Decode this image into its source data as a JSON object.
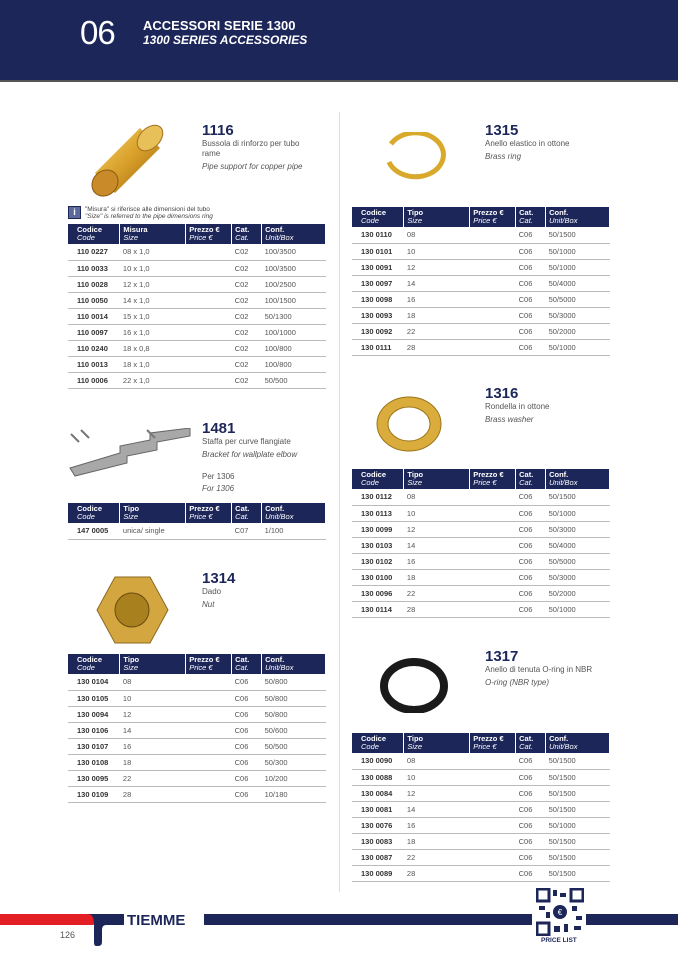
{
  "header": {
    "chapter": "06",
    "title_it": "ACCESSORI SERIE 1300",
    "title_en": "1300 SERIES ACCESSORIES"
  },
  "colors": {
    "brand_navy": "#1c2659",
    "brand_red": "#e31e24"
  },
  "note": {
    "it": "\"Misura\" si riferisce alle dimensioni del tubo",
    "en": "\"Size\" is referred to the pipe dimensions ring",
    "icon": "info-icon"
  },
  "headers_size": [
    [
      "Codice",
      "Code"
    ],
    [
      "Misura",
      "Size"
    ],
    [
      "Prezzo €",
      "Price €"
    ],
    [
      "Cat.",
      "Cat."
    ],
    [
      "Conf.",
      "Unit/Box"
    ]
  ],
  "headers_type": [
    [
      "Codice",
      "Code"
    ],
    [
      "Tipo",
      "Size"
    ],
    [
      "Prezzo €",
      "Price €"
    ],
    [
      "Cat.",
      "Cat."
    ],
    [
      "Conf.",
      "Unit/Box"
    ]
  ],
  "products": [
    {
      "id": "1116",
      "name_it": "Bussola di rinforzo per tubo rame",
      "name_en": "Pipe support for copper pipe",
      "headers": "headers_size",
      "rows": [
        [
          "110 0227",
          "08 x 1,0",
          "",
          "C02",
          "100/3500"
        ],
        [
          "110 0033",
          "10 x 1,0",
          "",
          "C02",
          "100/3500"
        ],
        [
          "110 0028",
          "12 x 1,0",
          "",
          "C02",
          "100/2500"
        ],
        [
          "110 0050",
          "14 x 1,0",
          "",
          "C02",
          "100/1500"
        ],
        [
          "110 0014",
          "15 x 1,0",
          "",
          "C02",
          "50/1300"
        ],
        [
          "110 0097",
          "16 x 1,0",
          "",
          "C02",
          "100/1000"
        ],
        [
          "110 0240",
          "18 x 0,8",
          "",
          "C02",
          "100/800"
        ],
        [
          "110 0013",
          "18 x 1,0",
          "",
          "C02",
          "100/800"
        ],
        [
          "110 0006",
          "22 x 1,0",
          "",
          "C02",
          "50/500"
        ]
      ]
    },
    {
      "id": "1481",
      "name_it": "Staffa per curve flangiate",
      "name_en": "Bracket for wallplate elbow",
      "extra_it": "Per 1306",
      "extra_en": "For 1306",
      "headers": "headers_type",
      "rows": [
        [
          "147 0005",
          "unica/ single",
          "",
          "C07",
          "1/100"
        ]
      ]
    },
    {
      "id": "1314",
      "name_it": "Dado",
      "name_en": "Nut",
      "headers": "headers_type",
      "rows": [
        [
          "130 0104",
          "08",
          "",
          "C06",
          "50/800"
        ],
        [
          "130 0105",
          "10",
          "",
          "C06",
          "50/800"
        ],
        [
          "130 0094",
          "12",
          "",
          "C06",
          "50/800"
        ],
        [
          "130 0106",
          "14",
          "",
          "C06",
          "50/600"
        ],
        [
          "130 0107",
          "16",
          "",
          "C06",
          "50/500"
        ],
        [
          "130 0108",
          "18",
          "",
          "C06",
          "50/300"
        ],
        [
          "130 0095",
          "22",
          "",
          "C06",
          "10/200"
        ],
        [
          "130 0109",
          "28",
          "",
          "C06",
          "10/180"
        ]
      ]
    },
    {
      "id": "1315",
      "name_it": "Anello elastico in ottone",
      "name_en": "Brass ring",
      "headers": "headers_type",
      "rows": [
        [
          "130 0110",
          "08",
          "",
          "C06",
          "50/1500"
        ],
        [
          "130 0101",
          "10",
          "",
          "C06",
          "50/1000"
        ],
        [
          "130 0091",
          "12",
          "",
          "C06",
          "50/1000"
        ],
        [
          "130 0097",
          "14",
          "",
          "C06",
          "50/4000"
        ],
        [
          "130 0098",
          "16",
          "",
          "C06",
          "50/5000"
        ],
        [
          "130 0093",
          "18",
          "",
          "C06",
          "50/3000"
        ],
        [
          "130 0092",
          "22",
          "",
          "C06",
          "50/2000"
        ],
        [
          "130 0111",
          "28",
          "",
          "C06",
          "50/1000"
        ]
      ]
    },
    {
      "id": "1316",
      "name_it": "Rondella in ottone",
      "name_en": "Brass washer",
      "headers": "headers_type",
      "rows": [
        [
          "130 0112",
          "08",
          "",
          "C06",
          "50/1500"
        ],
        [
          "130 0113",
          "10",
          "",
          "C06",
          "50/1000"
        ],
        [
          "130 0099",
          "12",
          "",
          "C06",
          "50/3000"
        ],
        [
          "130 0103",
          "14",
          "",
          "C06",
          "50/4000"
        ],
        [
          "130 0102",
          "16",
          "",
          "C06",
          "50/5000"
        ],
        [
          "130 0100",
          "18",
          "",
          "C06",
          "50/3000"
        ],
        [
          "130 0096",
          "22",
          "",
          "C06",
          "50/2000"
        ],
        [
          "130 0114",
          "28",
          "",
          "C06",
          "50/1000"
        ]
      ]
    },
    {
      "id": "1317",
      "name_it": "Anello di tenuta O-ring in NBR",
      "name_en": "O-ring (NBR type)",
      "headers": "headers_type",
      "rows": [
        [
          "130 0090",
          "08",
          "",
          "C06",
          "50/1500"
        ],
        [
          "130 0088",
          "10",
          "",
          "C06",
          "50/1500"
        ],
        [
          "130 0084",
          "12",
          "",
          "C06",
          "50/1500"
        ],
        [
          "130 0081",
          "14",
          "",
          "C06",
          "50/1500"
        ],
        [
          "130 0076",
          "16",
          "",
          "C06",
          "50/1000"
        ],
        [
          "130 0083",
          "18",
          "",
          "C06",
          "50/1500"
        ],
        [
          "130 0087",
          "22",
          "",
          "C06",
          "50/1500"
        ],
        [
          "130 0089",
          "28",
          "",
          "C06",
          "50/1500"
        ]
      ]
    }
  ],
  "footer": {
    "brand": "TIEMME",
    "page": "126",
    "qr_label": "PRICE LIST"
  }
}
